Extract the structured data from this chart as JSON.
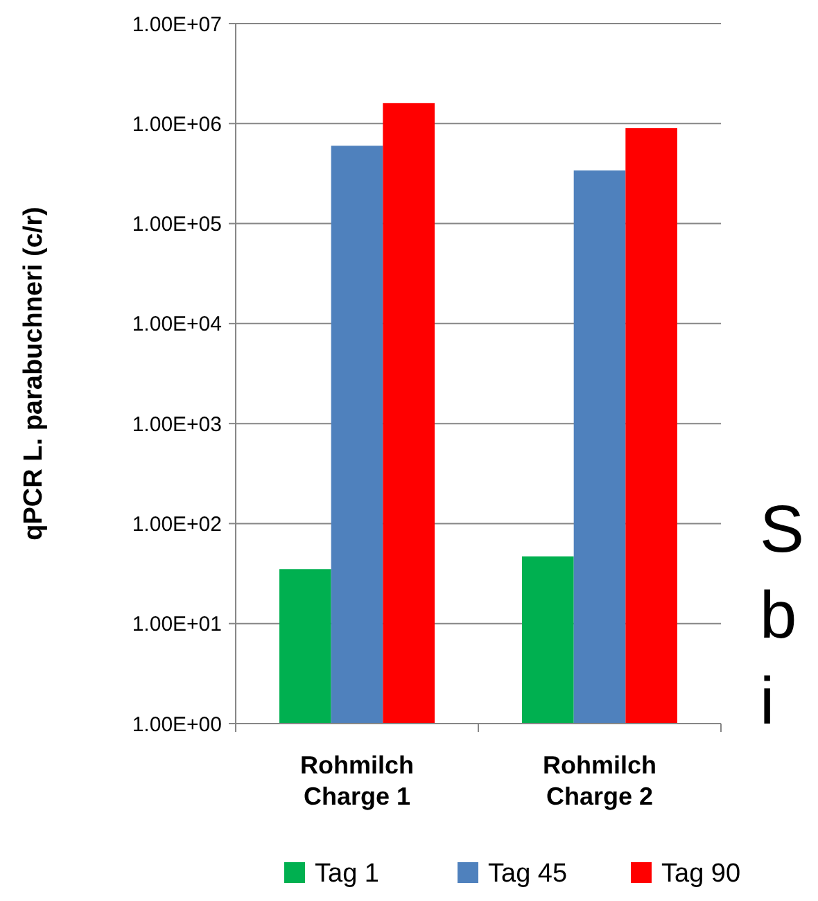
{
  "chart_data": {
    "type": "bar",
    "ylabel": "qPCR L. parabuchneri (c/r)",
    "categories": [
      "Rohmilch Charge 1",
      "Rohmilch Charge 2"
    ],
    "series": [
      {
        "name": "Tag 1",
        "color": "#00b050",
        "values": [
          35,
          47
        ]
      },
      {
        "name": "Tag 45",
        "color": "#4f81bd",
        "values": [
          600000,
          340000
        ]
      },
      {
        "name": "Tag 90",
        "color": "#ff0000",
        "values": [
          1600000,
          900000
        ]
      }
    ],
    "log": true,
    "ylim": [
      1,
      10000000
    ],
    "yticks": [
      {
        "value": 1,
        "label": "1.00E+00"
      },
      {
        "value": 10,
        "label": "1.00E+01"
      },
      {
        "value": 100,
        "label": "1.00E+02"
      },
      {
        "value": 1000,
        "label": "1.00E+03"
      },
      {
        "value": 10000,
        "label": "1.00E+04"
      },
      {
        "value": 100000,
        "label": "1.00E+05"
      },
      {
        "value": 1000000,
        "label": "1.00E+06"
      },
      {
        "value": 10000000,
        "label": "1.00E+07"
      }
    ],
    "grid": "y",
    "legend": "bottom",
    "annotations": [
      "S",
      "b",
      "i"
    ]
  }
}
